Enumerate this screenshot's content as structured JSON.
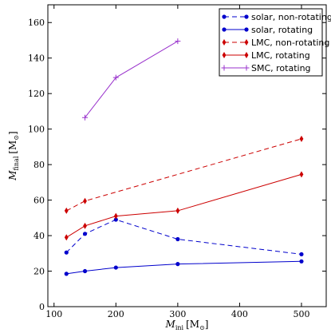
{
  "chart_data": {
    "type": "line",
    "xlabel": "M",
    "xlabel_sub": "ini",
    "xlabel_unit": "[M",
    "ylabel": "M",
    "ylabel_sub": "final",
    "ylabel_unit": "[M",
    "unit_symbol": "⊙",
    "unit_close": "]",
    "xlim": [
      90,
      540
    ],
    "ylim": [
      0,
      170
    ],
    "x_ticks": [
      100,
      200,
      300,
      400,
      500
    ],
    "x_tick_labels": [
      "100",
      "200",
      "300",
      "400",
      "500"
    ],
    "y_ticks": [
      0,
      20,
      40,
      60,
      80,
      100,
      120,
      140,
      160
    ],
    "y_tick_labels": [
      "0",
      "20",
      "40",
      "60",
      "80",
      "100",
      "120",
      "140",
      "160"
    ],
    "grid": false,
    "legend_position": "top-right",
    "series": [
      {
        "name": "solar, non-rotating",
        "color": "#0000cc",
        "dash": "dashed",
        "marker": "circle",
        "x": [
          120,
          150,
          200,
          300,
          500
        ],
        "y": [
          30.5,
          41,
          49,
          38,
          29.5
        ]
      },
      {
        "name": "solar, rotating",
        "color": "#0000cc",
        "dash": "solid",
        "marker": "circle",
        "x": [
          120,
          150,
          200,
          300,
          500
        ],
        "y": [
          18.5,
          20,
          22,
          24,
          25.5
        ]
      },
      {
        "name": "LMC, non-rotating",
        "color": "#cc0000",
        "dash": "dashed",
        "marker": "diamond",
        "x": [
          120,
          150,
          500
        ],
        "y": [
          54,
          59.5,
          94.5
        ]
      },
      {
        "name": "LMC, rotating",
        "color": "#cc0000",
        "dash": "solid",
        "marker": "diamond",
        "x": [
          120,
          150,
          200,
          300,
          500
        ],
        "y": [
          39,
          45.5,
          51,
          54,
          74.5
        ]
      },
      {
        "name": "SMC, rotating",
        "color": "#9932cc",
        "dash": "solid",
        "marker": "plus",
        "x": [
          150,
          200,
          300
        ],
        "y": [
          106.5,
          129,
          149.5
        ]
      }
    ]
  }
}
